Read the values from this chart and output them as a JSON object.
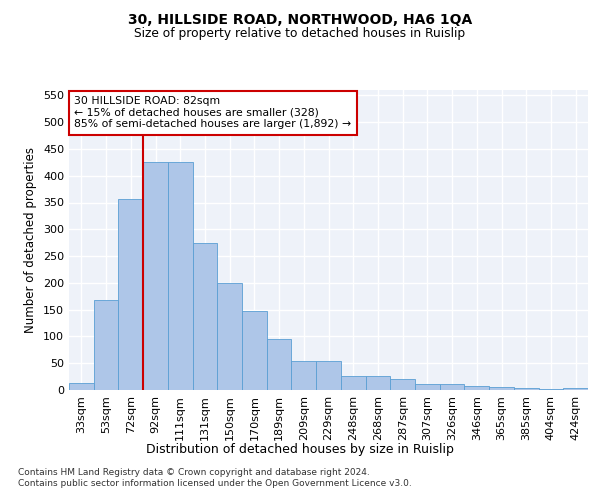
{
  "title": "30, HILLSIDE ROAD, NORTHWOOD, HA6 1QA",
  "subtitle": "Size of property relative to detached houses in Ruislip",
  "xlabel": "Distribution of detached houses by size in Ruislip",
  "ylabel": "Number of detached properties",
  "bar_labels": [
    "33sqm",
    "53sqm",
    "72sqm",
    "92sqm",
    "111sqm",
    "131sqm",
    "150sqm",
    "170sqm",
    "189sqm",
    "209sqm",
    "229sqm",
    "248sqm",
    "268sqm",
    "287sqm",
    "307sqm",
    "326sqm",
    "346sqm",
    "365sqm",
    "385sqm",
    "404sqm",
    "424sqm"
  ],
  "bar_values": [
    13,
    168,
    357,
    425,
    425,
    275,
    200,
    148,
    96,
    55,
    55,
    27,
    27,
    20,
    11,
    11,
    7,
    5,
    4,
    2,
    4
  ],
  "bar_color": "#aec6e8",
  "bar_edge_color": "#5a9fd4",
  "vline_x": 2.5,
  "vline_color": "#cc0000",
  "annotation_text": "30 HILLSIDE ROAD: 82sqm\n← 15% of detached houses are smaller (328)\n85% of semi-detached houses are larger (1,892) →",
  "annotation_box_color": "#ffffff",
  "annotation_box_edge": "#cc0000",
  "ylim": [
    0,
    560
  ],
  "yticks": [
    0,
    50,
    100,
    150,
    200,
    250,
    300,
    350,
    400,
    450,
    500,
    550
  ],
  "footnote": "Contains HM Land Registry data © Crown copyright and database right 2024.\nContains public sector information licensed under the Open Government Licence v3.0.",
  "plot_bg_color": "#eef2f9"
}
